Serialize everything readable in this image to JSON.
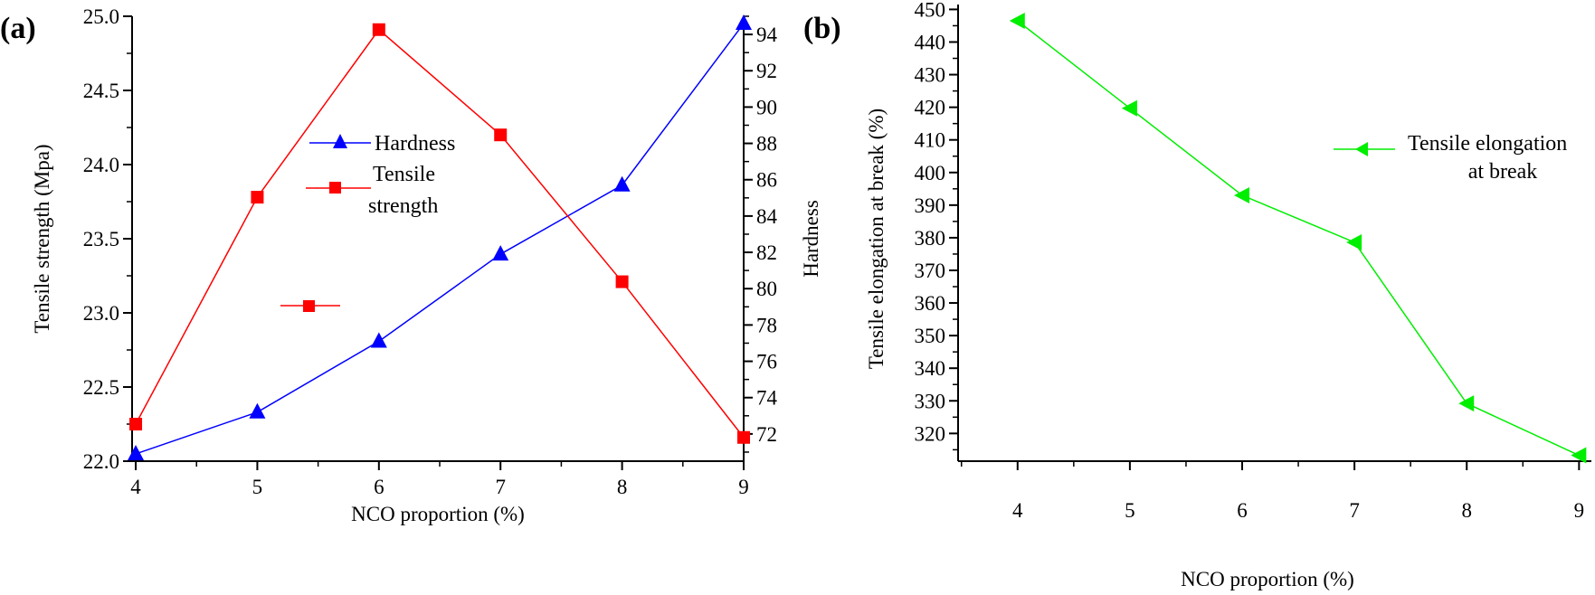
{
  "chart_data": [
    {
      "type": "line",
      "panel_label": "(a)",
      "xlabel": "NCO proportion (%)",
      "ylabel": "Tensile strength (Mpa)",
      "y2label": "Hardness",
      "x": [
        4,
        5,
        6,
        7,
        8,
        9
      ],
      "xlim": [
        3.97,
        9
      ],
      "ylim": [
        22.0,
        25.0
      ],
      "y2lim": [
        70.5,
        95.0
      ],
      "xticks": [
        4,
        5,
        6,
        7,
        8,
        9
      ],
      "yticks": [
        "22.0",
        "22.5",
        "23.0",
        "23.5",
        "24.0",
        "24.5",
        "25.0"
      ],
      "y2ticks": [
        72,
        74,
        76,
        78,
        80,
        82,
        84,
        86,
        88,
        90,
        92,
        94
      ],
      "grid": false,
      "legend_position": "center-left",
      "series": [
        {
          "name": "Hardness",
          "axis": "right",
          "marker": "triangle-up",
          "color": "#0000ff",
          "values": [
            70.9,
            73.2,
            77.1,
            81.9,
            85.7,
            94.6
          ]
        },
        {
          "name": "Tensile strength",
          "name_lines": [
            "Tensile",
            "strength"
          ],
          "axis": "left",
          "marker": "square",
          "color": "#ff0000",
          "values": [
            22.25,
            23.78,
            24.91,
            24.2,
            23.21,
            22.16
          ]
        }
      ]
    },
    {
      "type": "line",
      "panel_label": "(b)",
      "xlabel": "NCO proportion (%)",
      "ylabel": "Tensile elongation at break (%)",
      "x": [
        4,
        5,
        6,
        7,
        8,
        9
      ],
      "xlim": [
        3.47,
        9.11
      ],
      "ylim": [
        311.5,
        451.5
      ],
      "xticks": [
        4,
        5,
        6,
        7,
        8,
        9
      ],
      "yticks": [
        320,
        330,
        340,
        350,
        360,
        370,
        380,
        390,
        400,
        410,
        420,
        430,
        440,
        450
      ],
      "grid": false,
      "legend_position": "right",
      "series": [
        {
          "name": "Tensile elongation at break",
          "name_lines": [
            "Tensile elongation",
            "at break"
          ],
          "marker": "triangle-left",
          "color": "#00ee00",
          "values": [
            446.5,
            419.7,
            393.0,
            378.6,
            329.2,
            313.3
          ]
        }
      ]
    }
  ]
}
